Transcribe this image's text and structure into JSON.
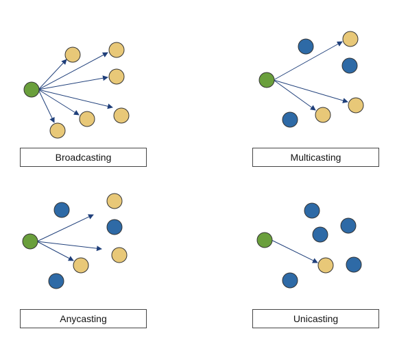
{
  "colors": {
    "source": "#6a9f3c",
    "member": "#e8c878",
    "other": "#2e6aa6",
    "arrow": "#1f3f7a",
    "outline": "#333333"
  },
  "panels": [
    {
      "label": "Broadcasting"
    },
    {
      "label": "Multicasting"
    },
    {
      "label": "Anycasting"
    },
    {
      "label": "Unicasting"
    }
  ]
}
